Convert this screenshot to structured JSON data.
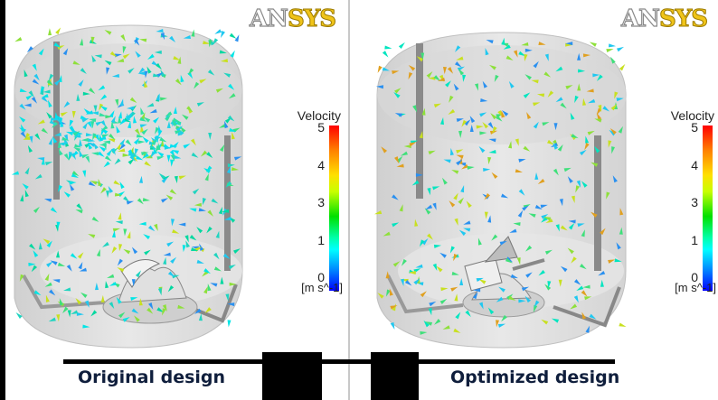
{
  "brand": {
    "logo_part1": "AN",
    "logo_part2": "SYS"
  },
  "legend": {
    "title": "Velocity",
    "ticks": [
      "5",
      "4",
      "3",
      "1",
      "0"
    ],
    "unit": "[m s^-1]",
    "colors": {
      "max": "#ff0000",
      "mid": "#00e000",
      "min": "#0000ff"
    }
  },
  "panels": [
    {
      "id": "original",
      "caption": "Original design"
    },
    {
      "id": "optimized",
      "caption": "Optimized design"
    }
  ],
  "colors": {
    "tank": "#dcdcdc",
    "baffle": "#8a8a8a",
    "caption": "#0f1e3c",
    "logo_gold": "#f0c419"
  }
}
